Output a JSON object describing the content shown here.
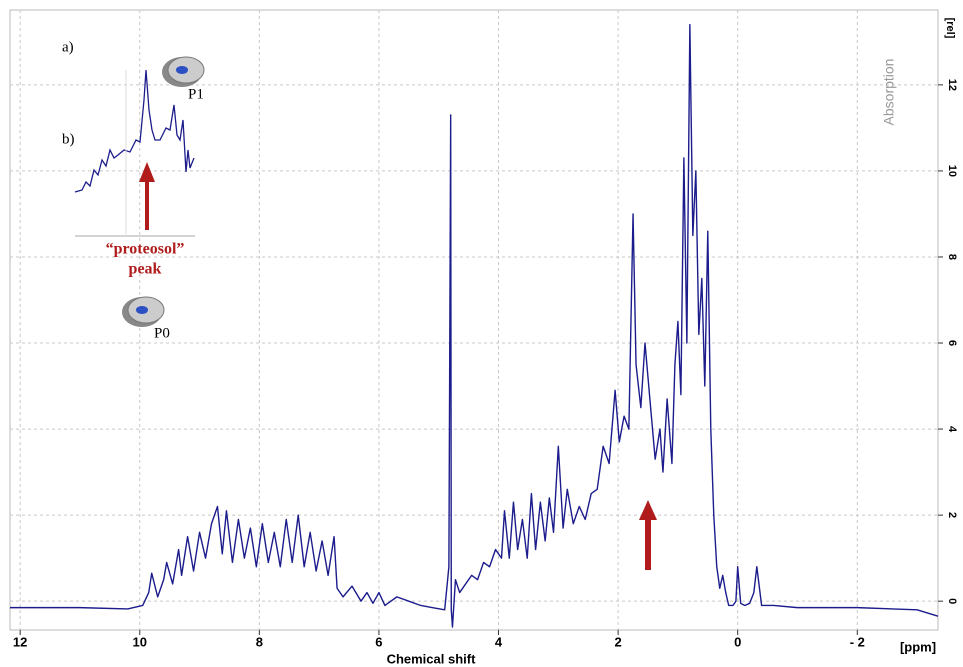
{
  "chart_data": {
    "type": "line",
    "x_label": "Chemical shift",
    "x_unit": "[ppm]",
    "y_unit": "[rel]",
    "y_label": "Absorption",
    "annotations": {
      "a": "a)",
      "b": "b)",
      "peak_name": "“proteosol”",
      "peak_word": "peak",
      "p1": "P1",
      "p0": "P0"
    },
    "xlim": [
      12.17,
      -3.35
    ],
    "ylim": [
      -0.67,
      13.74
    ],
    "xticks": [
      12,
      10,
      8,
      6,
      4,
      2,
      0,
      {
        "value": -2,
        "label": "- 2"
      }
    ],
    "yticks": [
      0,
      2,
      4,
      6,
      8,
      10,
      12
    ],
    "grid": true,
    "series": [
      {
        "name": "spectrum",
        "color": "#1c1c8c",
        "x": [
          12.17,
          11,
          10.2,
          9.95,
          9.85,
          9.8,
          9.7,
          9.6,
          9.55,
          9.45,
          9.35,
          9.3,
          9.2,
          9.1,
          9.0,
          8.9,
          8.8,
          8.7,
          8.62,
          8.55,
          8.45,
          8.35,
          8.25,
          8.15,
          8.05,
          7.95,
          7.85,
          7.75,
          7.65,
          7.55,
          7.45,
          7.35,
          7.25,
          7.15,
          7.05,
          6.95,
          6.85,
          6.75,
          6.7,
          6.6,
          6.45,
          6.3,
          6.2,
          6.1,
          6.0,
          5.9,
          5.7,
          5.5,
          5.3,
          5.1,
          4.9,
          4.83,
          4.8,
          4.79,
          4.77,
          4.72,
          4.65,
          4.55,
          4.45,
          4.35,
          4.25,
          4.15,
          4.05,
          3.95,
          3.9,
          3.82,
          3.75,
          3.68,
          3.6,
          3.52,
          3.45,
          3.38,
          3.3,
          3.22,
          3.15,
          3.08,
          3.0,
          2.92,
          2.85,
          2.75,
          2.65,
          2.55,
          2.45,
          2.35,
          2.25,
          2.15,
          2.05,
          1.98,
          1.9,
          1.82,
          1.75,
          1.7,
          1.62,
          1.55,
          1.5,
          1.45,
          1.38,
          1.3,
          1.25,
          1.18,
          1.1,
          1.05,
          1.0,
          0.95,
          0.9,
          0.85,
          0.8,
          0.75,
          0.7,
          0.65,
          0.6,
          0.55,
          0.5,
          0.45,
          0.4,
          0.35,
          0.3,
          0.25,
          0.2,
          0.15,
          0.08,
          0.03,
          0.0,
          -0.05,
          -0.12,
          -0.2,
          -0.27,
          -0.32,
          -0.4,
          -0.6,
          -1.0,
          -2.0,
          -3.0,
          -3.35
        ],
        "values": [
          -0.15,
          -0.15,
          -0.18,
          -0.1,
          0.2,
          0.65,
          0.1,
          0.5,
          0.9,
          0.4,
          1.2,
          0.6,
          1.5,
          0.7,
          1.6,
          1.0,
          1.8,
          2.2,
          1.1,
          2.1,
          0.9,
          1.9,
          1.0,
          1.7,
          0.8,
          1.8,
          0.9,
          1.6,
          0.8,
          1.9,
          0.9,
          2.0,
          0.8,
          1.6,
          0.7,
          1.4,
          0.6,
          1.5,
          0.3,
          0.1,
          0.35,
          0.0,
          0.2,
          -0.05,
          0.2,
          -0.1,
          0.1,
          0.0,
          -0.1,
          -0.15,
          -0.2,
          0.8,
          11.3,
          -0.2,
          -0.6,
          0.5,
          0.2,
          0.4,
          0.6,
          0.5,
          0.9,
          0.8,
          1.2,
          1.0,
          2.1,
          1.0,
          2.3,
          1.2,
          1.9,
          1.0,
          2.5,
          1.2,
          2.3,
          1.4,
          2.4,
          1.6,
          3.6,
          1.7,
          2.6,
          1.8,
          2.2,
          1.9,
          2.5,
          2.6,
          3.6,
          3.2,
          4.9,
          3.7,
          4.3,
          4.0,
          9.0,
          5.5,
          4.5,
          6.0,
          5.2,
          4.4,
          3.3,
          4.0,
          3.0,
          4.7,
          3.2,
          5.5,
          6.5,
          4.8,
          10.3,
          6.0,
          13.4,
          8.5,
          10.0,
          6.2,
          7.5,
          5.0,
          8.6,
          4.0,
          2.0,
          0.8,
          0.3,
          0.6,
          0.2,
          -0.1,
          -0.1,
          0.0,
          0.8,
          -0.05,
          -0.1,
          -0.05,
          0.2,
          0.8,
          -0.1,
          -0.1,
          -0.15,
          -0.15,
          -0.2,
          -0.35
        ]
      }
    ]
  }
}
